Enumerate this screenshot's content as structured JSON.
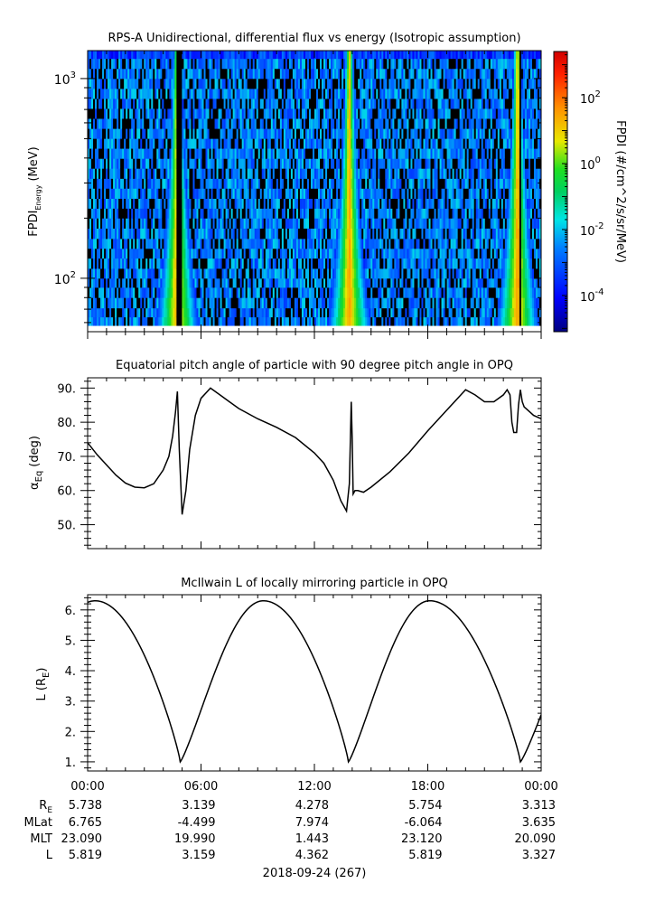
{
  "chart_data": [
    {
      "type": "heatmap",
      "title": "RPS-A Unidirectional, differential flux vs energy (Isotropic assumption)",
      "ylabel": {
        "main": "FPDI",
        "sub": "Energy",
        "unit": "(MeV)"
      },
      "yscale": "log",
      "ylim": [
        54,
        1380
      ],
      "xlim": [
        0,
        24
      ],
      "yticks": [
        {
          "value": 100,
          "base": "10",
          "exp": "2"
        },
        {
          "value": 1000,
          "base": "10",
          "exp": "3"
        }
      ],
      "energy_bins_mev": [
        58,
        64,
        71,
        80,
        90,
        100,
        112,
        126,
        141,
        158,
        178,
        200,
        224,
        251,
        282,
        316,
        355,
        398,
        447,
        501,
        562,
        631,
        708,
        794,
        891,
        1000,
        1122,
        1259,
        1380
      ],
      "peak_times_hours": [
        4.75,
        13.85,
        22.75
      ],
      "data_gaps_hours": [
        [
          4.75,
          4.95
        ],
        [
          22.8,
          22.95
        ]
      ],
      "colorbar": {
        "label": "FPDI (#/cm^2/s/sr/MeV)",
        "scale": "log",
        "range_exp": [
          -5.1,
          3.4
        ],
        "ticks": [
          {
            "value_exp": 2,
            "base": "10",
            "exp": "2"
          },
          {
            "value_exp": 0,
            "base": "10",
            "exp": "0"
          },
          {
            "value_exp": -2,
            "base": "10",
            "exp": "-2"
          },
          {
            "value_exp": -4,
            "base": "10",
            "exp": "-4"
          }
        ]
      }
    },
    {
      "type": "line",
      "title": "Equatorial pitch angle of particle with 90 degree pitch angle in OPQ",
      "ylabel": {
        "main": "α",
        "sub": "Eq",
        "unit": "(deg)"
      },
      "ylim": [
        43,
        93
      ],
      "yticks": [
        "50.",
        "60.",
        "70.",
        "80.",
        "90."
      ],
      "ytick_values": [
        50,
        60,
        70,
        80,
        90
      ],
      "x": [
        0,
        0.5,
        1.0,
        1.5,
        2.0,
        2.5,
        3.0,
        3.5,
        4.0,
        4.3,
        4.5,
        4.65,
        4.75,
        4.85,
        5.0,
        5.2,
        5.4,
        5.7,
        6.0,
        6.5,
        7.0,
        7.5,
        8.0,
        9.0,
        10.0,
        11.0,
        12.0,
        12.5,
        13.0,
        13.4,
        13.7,
        13.85,
        13.95,
        14.0,
        14.05,
        14.15,
        14.3,
        14.6,
        15.0,
        16.0,
        17.0,
        18.0,
        19.0,
        20.0,
        20.5,
        21.0,
        21.5,
        22.0,
        22.2,
        22.35,
        22.45,
        22.55,
        22.7,
        22.8,
        22.9,
        23.0,
        23.1,
        23.2,
        23.4,
        23.6,
        24.0
      ],
      "y": [
        74,
        70.5,
        67.5,
        64.5,
        62.2,
        61.0,
        60.8,
        62,
        66,
        70,
        76,
        83,
        89,
        72,
        53,
        60,
        72,
        82,
        87,
        90,
        88,
        86,
        84,
        81,
        78.5,
        75.5,
        71,
        68,
        63,
        57,
        54,
        62,
        86,
        75,
        59,
        60,
        60,
        59.5,
        61,
        65.5,
        71,
        77.5,
        83.5,
        89.5,
        88,
        86,
        86,
        88,
        89.5,
        88,
        80,
        77,
        77,
        85,
        89.5,
        86,
        84.5,
        84,
        83,
        82,
        81
      ]
    },
    {
      "type": "line",
      "title": "McIlwain L of locally mirroring particle in OPQ",
      "ylabel": {
        "main": "L (R",
        "sub": "E",
        "unit": ")"
      },
      "ylim": [
        0.7,
        6.5
      ],
      "yticks": [
        "1.",
        "2.",
        "3.",
        "4.",
        "5.",
        "6."
      ],
      "ytick_values": [
        1,
        2,
        3,
        4,
        5,
        6
      ],
      "l_curve": {
        "minima_hours": [
          4.9,
          13.8,
          22.9
        ],
        "maxima_hours": [
          0.4,
          9.3,
          18.1
        ],
        "l_min": 1.0,
        "l_max": 6.3
      }
    }
  ],
  "x_axis": {
    "tick_labels": [
      "00:00",
      "06:00",
      "12:00",
      "18:00",
      "00:00"
    ],
    "tick_hours": [
      0,
      6,
      12,
      18,
      24
    ],
    "date_label": "2018-09-24 (267)"
  },
  "ephemeris": {
    "rows": [
      {
        "name": "R",
        "sub": "E",
        "values": [
          "5.738",
          "3.139",
          "4.278",
          "5.754",
          "3.313"
        ]
      },
      {
        "name": "MLat",
        "sub": "",
        "values": [
          "6.765",
          "-4.499",
          "7.974",
          "-6.064",
          "3.635"
        ]
      },
      {
        "name": "MLT",
        "sub": "",
        "values": [
          "23.090",
          "19.990",
          "1.443",
          "23.120",
          "20.090"
        ]
      },
      {
        "name": "L",
        "sub": "",
        "values": [
          "5.819",
          "3.159",
          "4.362",
          "5.819",
          "3.327"
        ]
      }
    ]
  }
}
